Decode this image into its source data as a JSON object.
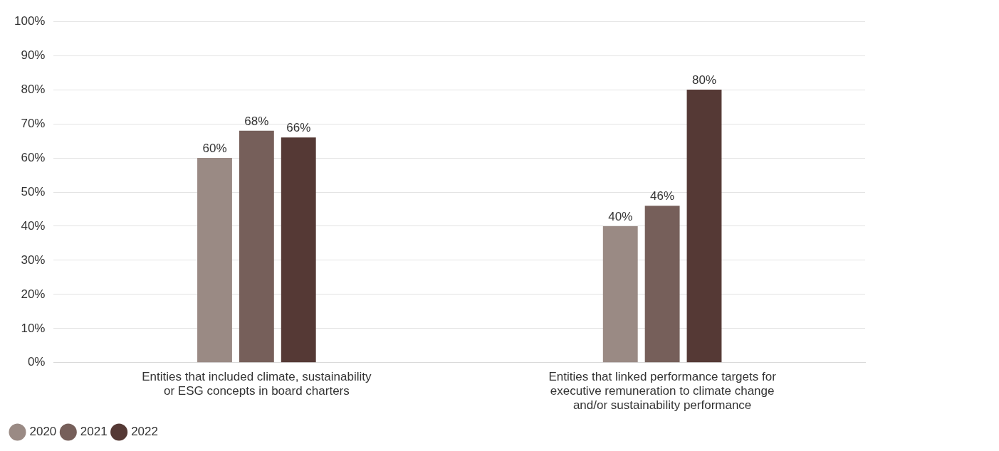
{
  "chart_data": {
    "type": "bar",
    "categories": [
      "Entities that included climate, sustainability or ESG concepts in board charters",
      "Entities that linked performance targets for executive remuneration to climate change and/or sustainability performance"
    ],
    "series": [
      {
        "name": "2020",
        "color": "#9a8a84",
        "values": [
          60,
          40
        ],
        "value_labels": [
          "60%",
          "40%"
        ]
      },
      {
        "name": "2021",
        "color": "#765f5a",
        "values": [
          68,
          46
        ],
        "value_labels": [
          "68%",
          "46%"
        ]
      },
      {
        "name": "2022",
        "color": "#553935",
        "values": [
          66,
          80
        ],
        "value_labels": [
          "66%",
          "80%"
        ]
      }
    ],
    "ylim": [
      0,
      100
    ],
    "yticks": [
      {
        "value": 0,
        "label": "0%"
      },
      {
        "value": 10,
        "label": "10%"
      },
      {
        "value": 20,
        "label": "20%"
      },
      {
        "value": 30,
        "label": "30%"
      },
      {
        "value": 40,
        "label": "40%"
      },
      {
        "value": 50,
        "label": "50%"
      },
      {
        "value": 60,
        "label": "60%"
      },
      {
        "value": 70,
        "label": "70%"
      },
      {
        "value": 80,
        "label": "80%"
      },
      {
        "value": 90,
        "label": "90%"
      },
      {
        "value": 100,
        "label": "100%"
      }
    ],
    "grid": "y",
    "legend": "bottom left"
  }
}
